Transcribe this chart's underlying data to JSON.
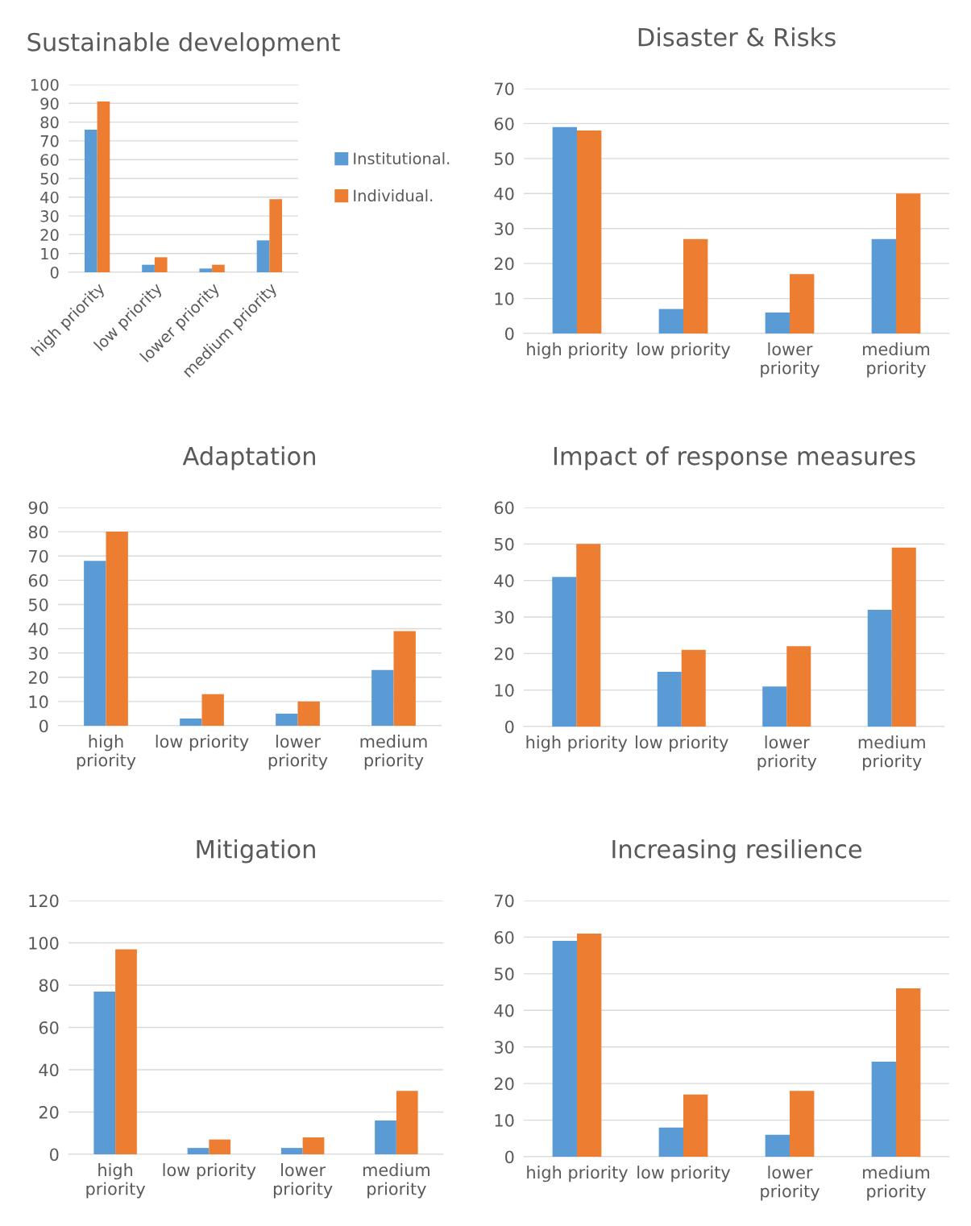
{
  "chart_data": [
    {
      "type": "bar",
      "title": "Sustainable development",
      "categories": [
        "high priority",
        "low priority",
        "lower priority",
        "medium priority"
      ],
      "ylim": [
        0,
        100
      ],
      "yticks": [
        0,
        10,
        20,
        30,
        40,
        50,
        60,
        70,
        80,
        90,
        100
      ],
      "grid": "y",
      "legend": "right",
      "series": [
        {
          "name": "Institutional.",
          "color": "#5b9bd5",
          "values": [
            76,
            4,
            2,
            17
          ]
        },
        {
          "name": "Individual.",
          "color": "#ed7d31",
          "values": [
            91,
            8,
            4,
            39
          ]
        }
      ]
    },
    {
      "type": "bar",
      "title": "Disaster & Risks",
      "categories": [
        "high priority",
        "low priority",
        "lower priority",
        "medium priority"
      ],
      "ylim": [
        0,
        70
      ],
      "yticks": [
        0,
        10,
        20,
        30,
        40,
        50,
        60,
        70
      ],
      "grid": "y",
      "series": [
        {
          "color": "#5b9bd5",
          "values": [
            59,
            7,
            6,
            27
          ]
        },
        {
          "color": "#ed7d31",
          "values": [
            58,
            27,
            17,
            40
          ]
        }
      ]
    },
    {
      "type": "bar",
      "title": "Adaptation",
      "categories": [
        "high priority",
        "low priority",
        "lower priority",
        "medium priority"
      ],
      "ylim": [
        0,
        90
      ],
      "yticks": [
        0,
        10,
        20,
        30,
        40,
        50,
        60,
        70,
        80,
        90
      ],
      "grid": "y",
      "series": [
        {
          "color": "#5b9bd5",
          "values": [
            68,
            3,
            5,
            23
          ]
        },
        {
          "color": "#ed7d31",
          "values": [
            80,
            13,
            10,
            39
          ]
        }
      ]
    },
    {
      "type": "bar",
      "title": "Impact of response measures",
      "categories": [
        "high priority",
        "low priority",
        "lower priority",
        "medium priority"
      ],
      "ylim": [
        0,
        60
      ],
      "yticks": [
        0,
        10,
        20,
        30,
        40,
        50,
        60
      ],
      "grid": "y",
      "series": [
        {
          "color": "#5b9bd5",
          "values": [
            41,
            15,
            11,
            32
          ]
        },
        {
          "color": "#ed7d31",
          "values": [
            50,
            21,
            22,
            49
          ]
        }
      ]
    },
    {
      "type": "bar",
      "title": "Mitigation",
      "categories": [
        "high priority",
        "low priority",
        "lower priority",
        "medium priority"
      ],
      "ylim": [
        0,
        120
      ],
      "yticks": [
        0,
        20,
        40,
        60,
        80,
        100,
        120
      ],
      "grid": "y",
      "series": [
        {
          "color": "#5b9bd5",
          "values": [
            77,
            3,
            3,
            16
          ]
        },
        {
          "color": "#ed7d31",
          "values": [
            97,
            7,
            8,
            30
          ]
        }
      ]
    },
    {
      "type": "bar",
      "title": "Increasing resilience",
      "categories": [
        "high priority",
        "low priority",
        "lower priority",
        "medium priority"
      ],
      "ylim": [
        0,
        70
      ],
      "yticks": [
        0,
        10,
        20,
        30,
        40,
        50,
        60,
        70
      ],
      "grid": "y",
      "series": [
        {
          "color": "#5b9bd5",
          "values": [
            59,
            8,
            6,
            26
          ]
        },
        {
          "color": "#ed7d31",
          "values": [
            61,
            17,
            18,
            46
          ]
        }
      ]
    }
  ]
}
